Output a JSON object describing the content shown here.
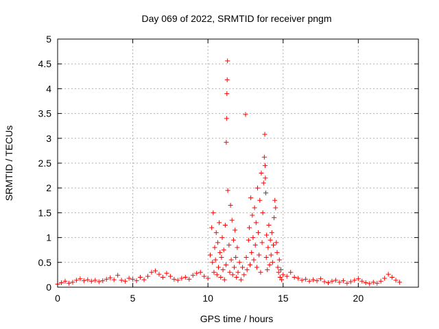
{
  "chart_data": {
    "type": "scatter",
    "title": "Day 069 of 2022, SRMTID for receiver pngm",
    "xlabel": "GPS time / hours",
    "ylabel": "SRMTID / TECUs",
    "xlim": [
      0,
      24
    ],
    "ylim": [
      0,
      5
    ],
    "xticks": [
      0,
      5,
      10,
      15,
      20
    ],
    "yticks": [
      0,
      0.5,
      1,
      1.5,
      2,
      2.5,
      3,
      3.5,
      4,
      4.5,
      5
    ],
    "ytick_labels": [
      "0",
      "0.5",
      "1",
      "1.5",
      "2",
      "2.5",
      "3",
      "3.5",
      "4",
      "4.5",
      "5"
    ],
    "grid": true,
    "marker": "+",
    "color": "#ff0000",
    "series": [
      {
        "points": [
          [
            0.0,
            0.06
          ],
          [
            0.25,
            0.09
          ],
          [
            0.5,
            0.12
          ],
          [
            0.75,
            0.08
          ],
          [
            1.0,
            0.1
          ],
          [
            1.25,
            0.14
          ],
          [
            1.5,
            0.17
          ],
          [
            1.75,
            0.13
          ],
          [
            2.0,
            0.15
          ],
          [
            2.25,
            0.12
          ],
          [
            2.5,
            0.14
          ],
          [
            2.75,
            0.11
          ],
          [
            3.0,
            0.13
          ],
          [
            3.25,
            0.16
          ],
          [
            3.5,
            0.19
          ],
          [
            3.75,
            0.15
          ],
          [
            4.0,
            0.24
          ],
          [
            4.25,
            0.14
          ],
          [
            4.5,
            0.12
          ],
          [
            4.75,
            0.18
          ],
          [
            5.0,
            0.16
          ],
          [
            5.25,
            0.13
          ],
          [
            5.5,
            0.2
          ],
          [
            5.75,
            0.15
          ],
          [
            6.0,
            0.22
          ],
          [
            6.25,
            0.3
          ],
          [
            6.5,
            0.33
          ],
          [
            6.75,
            0.26
          ],
          [
            7.0,
            0.2
          ],
          [
            7.25,
            0.28
          ],
          [
            7.5,
            0.22
          ],
          [
            7.75,
            0.16
          ],
          [
            8.0,
            0.14
          ],
          [
            8.25,
            0.18
          ],
          [
            8.5,
            0.2
          ],
          [
            8.75,
            0.16
          ],
          [
            9.0,
            0.24
          ],
          [
            9.25,
            0.28
          ],
          [
            9.5,
            0.3
          ],
          [
            9.75,
            0.22
          ],
          [
            10.0,
            0.18
          ],
          [
            10.15,
            0.65
          ],
          [
            10.25,
            1.2
          ],
          [
            10.3,
            0.5
          ],
          [
            10.35,
            1.5
          ],
          [
            10.4,
            0.3
          ],
          [
            10.45,
            0.8
          ],
          [
            10.5,
            0.55
          ],
          [
            10.55,
            1.1
          ],
          [
            10.6,
            0.25
          ],
          [
            10.65,
            0.9
          ],
          [
            10.7,
            0.4
          ],
          [
            10.75,
            1.3
          ],
          [
            10.8,
            0.7
          ],
          [
            10.85,
            0.2
          ],
          [
            10.9,
            0.6
          ],
          [
            10.95,
            1.0
          ],
          [
            11.0,
            0.35
          ],
          [
            11.05,
            0.75
          ],
          [
            11.1,
            0.15
          ],
          [
            11.15,
            1.25
          ],
          [
            11.2,
            0.45
          ],
          [
            11.22,
            2.92
          ],
          [
            11.24,
            3.4
          ],
          [
            11.26,
            3.9
          ],
          [
            11.28,
            4.18
          ],
          [
            11.3,
            4.56
          ],
          [
            11.32,
            1.95
          ],
          [
            11.4,
            0.85
          ],
          [
            11.45,
            0.3
          ],
          [
            11.5,
            1.65
          ],
          [
            11.55,
            0.55
          ],
          [
            11.6,
            1.35
          ],
          [
            11.65,
            0.25
          ],
          [
            11.7,
            0.95
          ],
          [
            11.75,
            0.4
          ],
          [
            11.8,
            1.15
          ],
          [
            11.85,
            0.6
          ],
          [
            11.9,
            0.2
          ],
          [
            11.95,
            0.8
          ],
          [
            12.0,
            0.3
          ],
          [
            12.1,
            0.5
          ],
          [
            12.2,
            0.15
          ],
          [
            12.3,
            0.4
          ],
          [
            12.4,
            0.25
          ],
          [
            12.5,
            3.48
          ],
          [
            12.55,
            0.6
          ],
          [
            12.6,
            0.35
          ],
          [
            12.7,
            0.95
          ],
          [
            12.75,
            1.2
          ],
          [
            12.8,
            0.45
          ],
          [
            12.85,
            1.8
          ],
          [
            12.9,
            0.7
          ],
          [
            12.95,
            1.45
          ],
          [
            13.0,
            1.0
          ],
          [
            13.05,
            0.55
          ],
          [
            13.1,
            1.6
          ],
          [
            13.15,
            0.85
          ],
          [
            13.2,
            1.3
          ],
          [
            13.25,
            0.4
          ],
          [
            13.3,
            2.0
          ],
          [
            13.35,
            1.1
          ],
          [
            13.4,
            0.65
          ],
          [
            13.45,
            1.75
          ],
          [
            13.5,
            0.3
          ],
          [
            13.55,
            2.3
          ],
          [
            13.6,
            0.9
          ],
          [
            13.65,
            1.5
          ],
          [
            13.7,
            2.1
          ],
          [
            13.75,
            2.62
          ],
          [
            13.78,
            3.08
          ],
          [
            13.8,
            2.45
          ],
          [
            13.82,
            2.2
          ],
          [
            13.85,
            1.9
          ],
          [
            13.88,
            0.6
          ],
          [
            13.9,
            1.05
          ],
          [
            13.95,
            0.35
          ],
          [
            14.0,
            0.8
          ],
          [
            14.05,
            1.25
          ],
          [
            14.1,
            0.45
          ],
          [
            14.15,
            0.95
          ],
          [
            14.2,
            0.65
          ],
          [
            14.25,
            1.1
          ],
          [
            14.3,
            0.5
          ],
          [
            14.35,
            0.85
          ],
          [
            14.4,
            1.4
          ],
          [
            14.45,
            1.75
          ],
          [
            14.5,
            1.6
          ],
          [
            14.55,
            0.9
          ],
          [
            14.6,
            0.7
          ],
          [
            14.65,
            0.4
          ],
          [
            14.7,
            0.3
          ],
          [
            14.75,
            0.55
          ],
          [
            14.8,
            0.2
          ],
          [
            14.85,
            0.35
          ],
          [
            14.9,
            0.15
          ],
          [
            15.0,
            0.25
          ],
          [
            15.25,
            0.22
          ],
          [
            15.5,
            0.3
          ],
          [
            15.75,
            0.2
          ],
          [
            16.0,
            0.18
          ],
          [
            16.25,
            0.14
          ],
          [
            16.5,
            0.16
          ],
          [
            16.75,
            0.12
          ],
          [
            17.0,
            0.15
          ],
          [
            17.25,
            0.13
          ],
          [
            17.5,
            0.17
          ],
          [
            17.75,
            0.11
          ],
          [
            18.0,
            0.09
          ],
          [
            18.25,
            0.12
          ],
          [
            18.5,
            0.14
          ],
          [
            18.75,
            0.1
          ],
          [
            19.0,
            0.13
          ],
          [
            19.25,
            0.08
          ],
          [
            19.5,
            0.11
          ],
          [
            19.75,
            0.14
          ],
          [
            20.0,
            0.17
          ],
          [
            20.25,
            0.12
          ],
          [
            20.5,
            0.09
          ],
          [
            20.75,
            0.07
          ],
          [
            21.0,
            0.1
          ],
          [
            21.25,
            0.08
          ],
          [
            21.5,
            0.12
          ],
          [
            21.75,
            0.18
          ],
          [
            22.0,
            0.26
          ],
          [
            22.25,
            0.2
          ],
          [
            22.5,
            0.14
          ],
          [
            22.75,
            0.1
          ]
        ]
      }
    ]
  }
}
